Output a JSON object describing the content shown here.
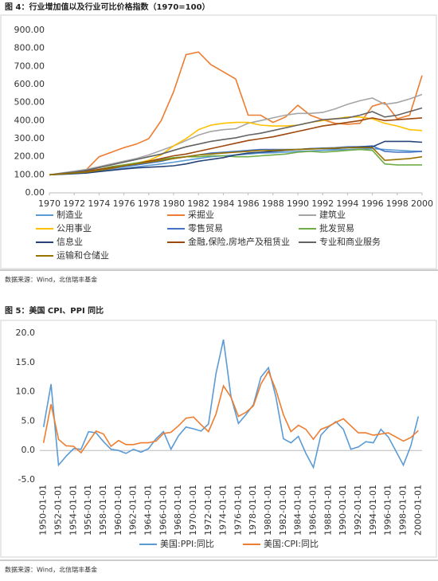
{
  "chart_data": [
    {
      "type": "line",
      "title": "图 4：行业增加值以及行业可比价格指数（1970=100）",
      "source": "数据来源：Wind，北信瑞丰基金",
      "x": [
        1970,
        1971,
        1972,
        1973,
        1974,
        1975,
        1976,
        1977,
        1978,
        1979,
        1980,
        1981,
        1982,
        1983,
        1984,
        1985,
        1986,
        1987,
        1988,
        1989,
        1990,
        1991,
        1992,
        1993,
        1994,
        1995,
        1996,
        1997,
        1998,
        1999,
        2000
      ],
      "xlim": [
        1970,
        2000
      ],
      "xticks": [
        1970,
        1972,
        1974,
        1976,
        1978,
        1980,
        1982,
        1984,
        1986,
        1988,
        1990,
        1992,
        1994,
        1996,
        1998,
        2000
      ],
      "ylim": [
        0,
        900
      ],
      "yticks": [
        {
          "value": 0,
          "label": "0.00"
        },
        {
          "value": 100,
          "label": "100.00"
        },
        {
          "value": 200,
          "label": "200.00"
        },
        {
          "value": 300,
          "label": "300.00"
        },
        {
          "value": 400,
          "label": "400.00"
        },
        {
          "value": 500,
          "label": "500.00"
        },
        {
          "value": 600,
          "label": "600.00"
        },
        {
          "value": 700,
          "label": "700.00"
        },
        {
          "value": 800,
          "label": "800.00"
        },
        {
          "value": 900,
          "label": "900.00"
        }
      ],
      "grid": false,
      "legend": "bottom",
      "series": [
        {
          "name": "制造业",
          "color": "#5b9bd5",
          "values": [
            100,
            104,
            108,
            112,
            120,
            128,
            136,
            144,
            152,
            160,
            170,
            180,
            190,
            200,
            205,
            210,
            215,
            220,
            222,
            225,
            230,
            232,
            235,
            238,
            240,
            242,
            245,
            240,
            236,
            232,
            230
          ]
        },
        {
          "name": "采掘业",
          "color": "#ed7d31",
          "values": [
            100,
            105,
            115,
            130,
            200,
            225,
            250,
            270,
            300,
            400,
            560,
            765,
            780,
            710,
            670,
            630,
            430,
            430,
            390,
            420,
            485,
            430,
            405,
            385,
            380,
            385,
            480,
            500,
            410,
            430,
            650
          ]
        },
        {
          "name": "建筑业",
          "color": "#a5a5a5",
          "values": [
            100,
            110,
            120,
            130,
            145,
            160,
            175,
            190,
            210,
            235,
            260,
            290,
            320,
            340,
            350,
            355,
            385,
            400,
            415,
            430,
            440,
            440,
            445,
            465,
            490,
            510,
            525,
            490,
            500,
            520,
            545
          ]
        },
        {
          "name": "公用事业",
          "color": "#ffc000",
          "values": [
            100,
            105,
            110,
            115,
            130,
            145,
            155,
            165,
            180,
            210,
            260,
            300,
            350,
            375,
            385,
            390,
            390,
            375,
            370,
            370,
            375,
            390,
            400,
            410,
            420,
            420,
            410,
            385,
            370,
            350,
            345
          ]
        },
        {
          "name": "零售贸易",
          "color": "#4472c4",
          "values": [
            100,
            105,
            110,
            115,
            125,
            135,
            145,
            155,
            165,
            175,
            190,
            200,
            210,
            220,
            225,
            230,
            235,
            240,
            240,
            240,
            240,
            245,
            248,
            250,
            255,
            255,
            260,
            230,
            225,
            225,
            230
          ]
        },
        {
          "name": "批发贸易",
          "color": "#70ad47",
          "values": [
            100,
            105,
            110,
            115,
            130,
            145,
            155,
            165,
            175,
            185,
            195,
            200,
            200,
            205,
            205,
            200,
            200,
            205,
            210,
            215,
            225,
            230,
            225,
            230,
            235,
            240,
            235,
            160,
            155,
            155,
            155
          ]
        },
        {
          "name": "信息业",
          "color": "#264478",
          "values": [
            100,
            103,
            106,
            110,
            118,
            125,
            132,
            138,
            142,
            145,
            150,
            160,
            175,
            185,
            195,
            210,
            220,
            225,
            230,
            235,
            240,
            245,
            245,
            245,
            250,
            255,
            255,
            285,
            285,
            285,
            280
          ]
        },
        {
          "name": "金融,保险,房地产及租赁业",
          "color": "#9e480e",
          "values": [
            100,
            105,
            112,
            120,
            130,
            140,
            150,
            160,
            175,
            190,
            205,
            215,
            230,
            245,
            260,
            275,
            290,
            300,
            310,
            325,
            340,
            355,
            370,
            380,
            390,
            400,
            415,
            400,
            405,
            410,
            415
          ]
        },
        {
          "name": "专业和商业服务",
          "color": "#636363",
          "values": [
            100,
            108,
            115,
            125,
            140,
            155,
            170,
            185,
            200,
            215,
            235,
            255,
            270,
            285,
            295,
            305,
            320,
            330,
            345,
            360,
            375,
            390,
            405,
            410,
            415,
            430,
            450,
            420,
            430,
            450,
            470
          ]
        },
        {
          "name": "运输和仓储业",
          "color": "#997300",
          "values": [
            100,
            105,
            110,
            115,
            125,
            135,
            150,
            160,
            170,
            180,
            190,
            200,
            210,
            215,
            220,
            225,
            230,
            235,
            235,
            238,
            240,
            242,
            245,
            248,
            250,
            250,
            250,
            180,
            185,
            190,
            200
          ]
        }
      ]
    },
    {
      "type": "line",
      "title": "图 5：美国 CPI、PPI 同比",
      "source": "数据来源：Wind，北信瑞丰基金",
      "categories": [
        "1950-01-01",
        null,
        "1952-01-01",
        null,
        "1954-01-01",
        null,
        "1956-01-01",
        null,
        "1958-01-01",
        null,
        "1960-01-01",
        null,
        "1962-01-01",
        null,
        "1964-01-01",
        null,
        "1966-01-01",
        null,
        "1968-01-01",
        null,
        "1970-01-01",
        null,
        "1972-01-01",
        null,
        "1974-01-01",
        null,
        "1976-01-01",
        null,
        "1978-01-01",
        null,
        "1980-01-01",
        null,
        "1982-01-01",
        null,
        "1984-01-01",
        null,
        "1986-01-01",
        null,
        "1988-01-01",
        null,
        "1990-01-01",
        null,
        "1992-01-01",
        null,
        "1994-01-01",
        null,
        "1996-01-01",
        null,
        "1998-01-01",
        null,
        "2000-01-01"
      ],
      "ylim": [
        -5,
        20
      ],
      "yticks": [
        {
          "value": -5,
          "label": "-5.0"
        },
        {
          "value": 0,
          "label": "0.0"
        },
        {
          "value": 5,
          "label": "5.0"
        },
        {
          "value": 10,
          "label": "10.0"
        },
        {
          "value": 15,
          "label": "15.0"
        },
        {
          "value": 20,
          "label": "20.0"
        }
      ],
      "grid": false,
      "legend": "bottom",
      "series": [
        {
          "name": "美国:PPI:同比",
          "color": "#5b9bd5",
          "values": [
            4,
            11.3,
            -2.5,
            -1,
            0.3,
            0.2,
            3.2,
            3,
            1.5,
            0.2,
            0,
            -0.5,
            0.2,
            -0.3,
            0.3,
            2,
            3.2,
            0.2,
            2.5,
            4,
            3.7,
            3.3,
            4.5,
            13.1,
            18.9,
            9.2,
            4.6,
            6.1,
            7.8,
            12.5,
            14.1,
            9.1,
            2,
            1.3,
            2.4,
            -0.5,
            -2.9,
            2.6,
            4,
            4.9,
            3.6,
            0.2,
            0.6,
            1.5,
            1.3,
            3.6,
            2.3,
            -0.1,
            -2.5,
            0.8,
            5.8
          ]
        },
        {
          "name": "美国:CPI:同比",
          "color": "#ed7d31",
          "values": [
            1.3,
            7.9,
            1.9,
            0.8,
            0.7,
            -0.4,
            1.5,
            3.3,
            2.8,
            0.7,
            1.7,
            1,
            1,
            1.3,
            1.3,
            1.6,
            2.9,
            3.1,
            4.2,
            5.5,
            5.7,
            4.4,
            3.2,
            6.2,
            11,
            9.1,
            5.8,
            6.5,
            7.6,
            11.3,
            13.5,
            10.3,
            6.1,
            3.2,
            4.3,
            3.6,
            1.9,
            3.6,
            4.1,
            4.8,
            5.4,
            4.2,
            3,
            3,
            2.6,
            2.8,
            3,
            2.3,
            1.6,
            2.2,
            3.4
          ]
        }
      ]
    }
  ]
}
